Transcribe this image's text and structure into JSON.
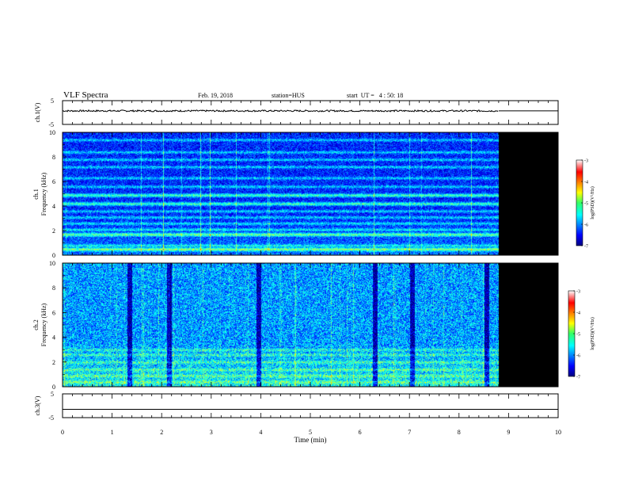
{
  "header": {
    "title": "VLF Spectra",
    "date": "Feb. 19, 2018",
    "station": "station=HUS",
    "start_ut": "start  UT =   4 : 50: 18"
  },
  "colorbar": {
    "ticks": [
      "-3",
      "-4",
      "-5",
      "-6",
      "-7"
    ],
    "label": "log(PSD)(V²/Hz)"
  },
  "chart_data": [
    {
      "type": "line",
      "ylabel": "ch.1(V)",
      "ylim": [
        -5,
        5
      ],
      "y_ticks": [
        "5",
        "-5"
      ],
      "xlim": [
        0,
        10
      ],
      "series": [
        {
          "x_range": [
            0,
            8.8
          ],
          "mean": 0.7,
          "amplitude": 0.35
        }
      ]
    },
    {
      "type": "heatmap",
      "ylabel": "ch.1\nFrequency (kHz)",
      "ylim": [
        0,
        10
      ],
      "y_ticks": [
        "0",
        "2",
        "4",
        "6",
        "8",
        "10"
      ],
      "x_data_end": 8.8,
      "colorscale": "jet",
      "crange": [
        -7,
        -3
      ],
      "bands_khz": [
        0.5,
        0.8,
        1.7,
        2.1,
        2.6,
        3.1,
        3.6,
        4.2,
        4.9,
        5.6,
        6.3,
        7.2,
        7.8,
        8.4,
        9.4
      ],
      "strong_bands_khz": [
        0.5,
        1.7,
        4.2,
        4.9
      ]
    },
    {
      "type": "heatmap",
      "ylabel": "ch.2\nFrequency (kHz)",
      "ylim": [
        0,
        10
      ],
      "y_ticks": [
        "0",
        "2",
        "4",
        "6",
        "8",
        "10"
      ],
      "x_data_end": 8.8,
      "colorscale": "jet",
      "crange": [
        -7,
        -3
      ],
      "bands_khz": [
        0.4,
        0.9,
        1.4,
        2.0,
        2.6,
        3.0
      ],
      "quiet_times_min": [
        1.35,
        2.15,
        3.95,
        6.3,
        7.05,
        8.55
      ]
    },
    {
      "type": "line",
      "ylabel": "ch.3(V)",
      "ylim": [
        -5,
        5
      ],
      "y_ticks": [
        "5",
        "-5"
      ],
      "xlim": [
        0,
        10
      ],
      "series": [
        {
          "x_range": [
            0,
            10
          ],
          "value": -1.5
        }
      ]
    }
  ],
  "xaxis": {
    "label": "Time (min)",
    "ticks": [
      "0",
      "1",
      "2",
      "3",
      "4",
      "5",
      "6",
      "7",
      "8",
      "9",
      "10"
    ]
  }
}
